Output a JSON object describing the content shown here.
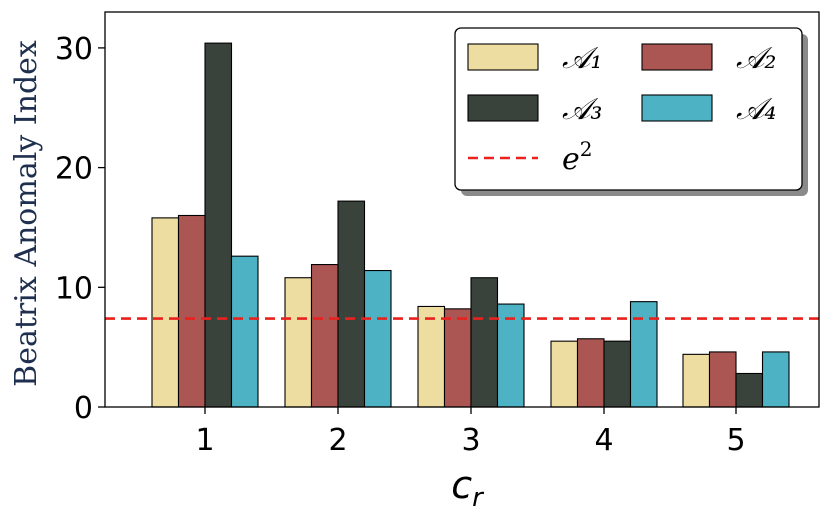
{
  "chart_data": {
    "type": "bar",
    "title": "",
    "xlabel": "c_r",
    "xlabel_main": "c",
    "xlabel_sub": "r",
    "ylabel": "Beatrix Anomaly Index",
    "ylim": [
      0,
      33
    ],
    "yticks": [
      0,
      10,
      20,
      30
    ],
    "categories": [
      "1",
      "2",
      "3",
      "4",
      "5"
    ],
    "series": [
      {
        "name": "𝒜₁",
        "color": "#eedda0",
        "values": [
          15.8,
          10.8,
          8.4,
          5.5,
          4.4
        ]
      },
      {
        "name": "𝒜₂",
        "color": "#ac5654",
        "values": [
          16.0,
          11.9,
          8.2,
          5.7,
          4.6
        ]
      },
      {
        "name": "𝒜₃",
        "color": "#3a423c",
        "values": [
          30.4,
          17.2,
          10.8,
          5.5,
          2.8
        ]
      },
      {
        "name": "𝒜₄",
        "color": "#4db2c4",
        "values": [
          12.6,
          11.4,
          8.6,
          8.8,
          4.6
        ]
      }
    ],
    "reference_line": {
      "name": "e²",
      "label_main": "e",
      "label_sup": "2",
      "value": 7.389,
      "color": "#e8221f",
      "style": "dashed"
    },
    "legend": {
      "position": "top-right"
    },
    "grid": false
  }
}
